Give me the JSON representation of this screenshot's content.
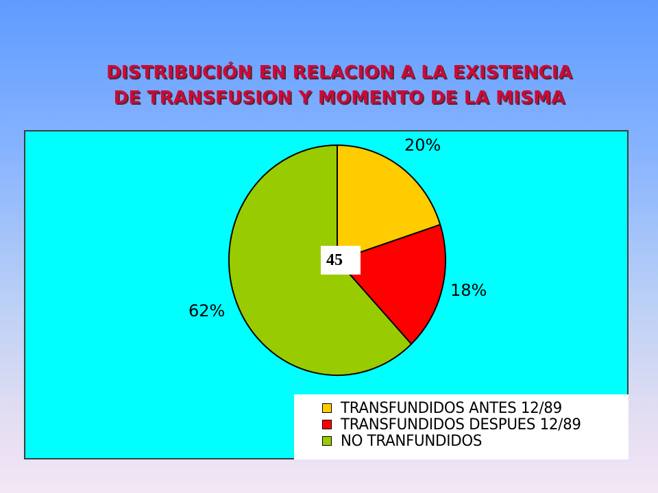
{
  "title_lines": [
    "DISTRIBUCIÓN EN RELACION A LA EXISTENCIA",
    "DE TRANSFUSION Y MOMENTO DE LA MISMA"
  ],
  "center_label": "45",
  "chart_data": {
    "type": "pie",
    "title": "DISTRIBUCIÓN EN RELACION A LA EXISTENCIA DE TRANSFUSION Y MOMENTO DE LA MISMA",
    "categories": [
      "TRANSFUNDIDOS ANTES 12/89",
      "TRANSFUNDIDOS DESPUES 12/89",
      "NO TRANFUNDIDOS"
    ],
    "values": [
      20,
      18,
      62
    ],
    "data_labels": [
      "20%",
      "18%",
      "62%"
    ],
    "colors": [
      "#ffcc00",
      "#ff0000",
      "#99cc00"
    ],
    "legend_position": "bottom-right"
  }
}
